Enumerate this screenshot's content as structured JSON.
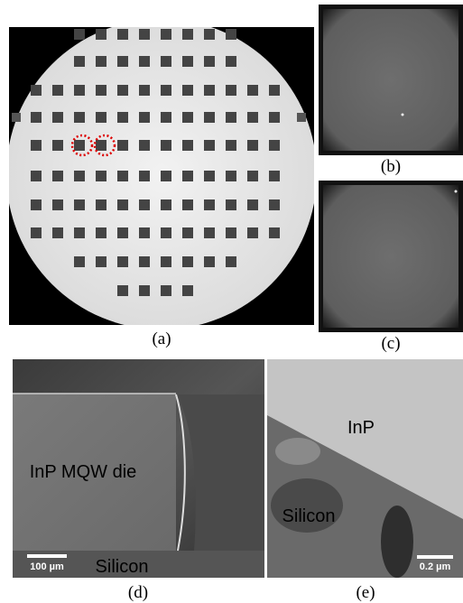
{
  "panels": {
    "a": {
      "caption": "(a)"
    },
    "b": {
      "caption": "(b)"
    },
    "c": {
      "caption": "(c)"
    },
    "d": {
      "caption": "(d)",
      "die_label": "InP MQW die",
      "substrate_label": "Silicon",
      "scale_bar": "100 µm"
    },
    "e": {
      "caption": "(e)",
      "top_label": "InP",
      "bottom_label": "Silicon",
      "scale_bar": "0.2 µm"
    }
  }
}
